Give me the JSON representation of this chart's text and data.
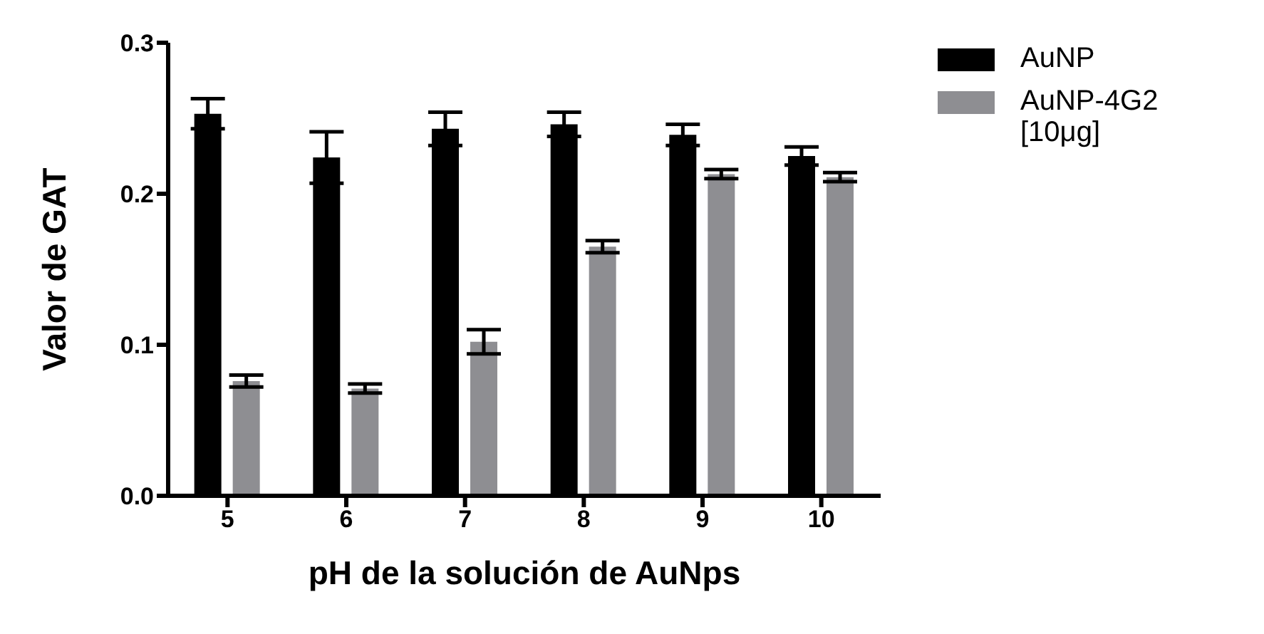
{
  "chart_data": {
    "type": "bar",
    "xlabel": "pH de la solución de AuNps",
    "ylabel": "Valor de GAT",
    "categories": [
      "5",
      "6",
      "7",
      "8",
      "9",
      "10"
    ],
    "series": [
      {
        "name": "AuNP",
        "color": "#000000",
        "values": [
          0.253,
          0.224,
          0.243,
          0.246,
          0.239,
          0.225
        ],
        "errors": [
          0.01,
          0.017,
          0.011,
          0.008,
          0.007,
          0.006
        ]
      },
      {
        "name": "AuNP-4G2 [10μg]",
        "color": "#8e8e92",
        "values": [
          0.076,
          0.071,
          0.102,
          0.165,
          0.213,
          0.211
        ],
        "errors": [
          0.004,
          0.003,
          0.008,
          0.004,
          0.003,
          0.003
        ]
      }
    ],
    "ylim": [
      0,
      0.3
    ],
    "yticks": [
      {
        "value": 0,
        "label": "0.0"
      },
      0.1,
      0.2,
      0.3
    ],
    "grid": false,
    "legend": "top right"
  }
}
